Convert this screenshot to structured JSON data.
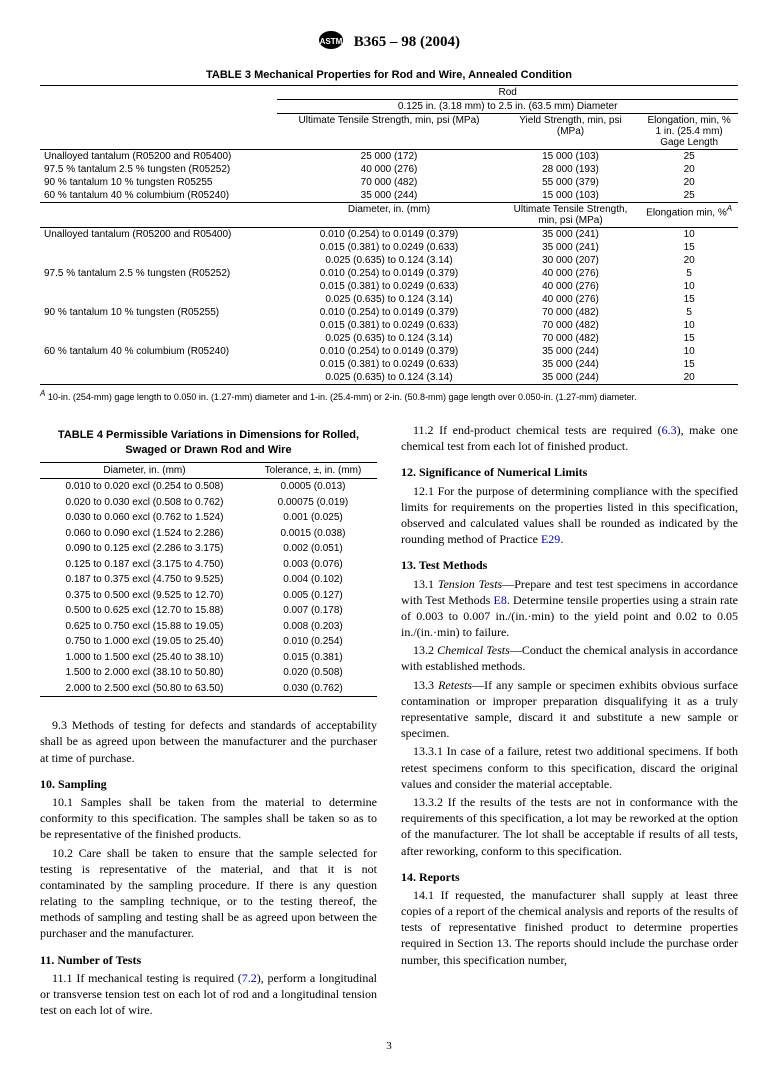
{
  "header": {
    "standard": "B365 – 98 (2004)"
  },
  "table3": {
    "title": "TABLE 3 Mechanical Properties for Rod and Wire, Annealed Condition",
    "top_header": "Rod",
    "sub_header": "0.125 in. (3.18 mm) to 2.5 in. (63.5 mm) Diameter",
    "col1": "Ultimate Tensile Strength, min, psi (MPa)",
    "col2": "Yield Strength, min, psi (MPa)",
    "col3": "Elongation, min, % 1 in. (25.4 mm) Gage Length",
    "rodRows": [
      {
        "mat": "Unalloyed tantalum (R05200 and R05400)",
        "uts": "25 000 (172)",
        "ys": "15 000 (103)",
        "el": "25"
      },
      {
        "mat": "97.5 % tantalum 2.5 % tungsten (R05252)",
        "uts": "40 000 (276)",
        "ys": "28 000 (193)",
        "el": "20"
      },
      {
        "mat": "90 % tantalum 10 % tungsten R05255",
        "uts": "70 000 (482)",
        "ys": "55 000 (379)",
        "el": "20"
      },
      {
        "mat": "60 % tantalum 40 % columbium (R05240)",
        "uts": "35 000 (244)",
        "ys": "15 000 (103)",
        "el": "25"
      }
    ],
    "mid_col1": "Diameter, in. (mm)",
    "mid_col2": "Ultimate Tensile Strength, min, psi (MPa)",
    "mid_col3": "Elongation min, %",
    "mid_col3_sup": "A",
    "wireGroups": [
      {
        "mat": "Unalloyed tantalum (R05200 and R05400)",
        "rows": [
          {
            "d": "0.010 (0.254) to 0.0149 (0.379)",
            "uts": "35 000 (241)",
            "el": "10"
          },
          {
            "d": "0.015 (0.381) to 0.0249 (0.633)",
            "uts": "35 000 (241)",
            "el": "15"
          },
          {
            "d": "0.025 (0.635) to 0.124 (3.14)",
            "uts": "30 000 (207)",
            "el": "20"
          }
        ]
      },
      {
        "mat": "97.5 % tantalum 2.5 % tungsten (R05252)",
        "rows": [
          {
            "d": "0.010 (0.254) to 0.0149 (0.379)",
            "uts": "40 000 (276)",
            "el": "5"
          },
          {
            "d": "0.015 (0.381) to 0.0249 (0.633)",
            "uts": "40 000 (276)",
            "el": "10"
          },
          {
            "d": "0.025 (0.635) to 0.124 (3.14)",
            "uts": "40 000 (276)",
            "el": "15"
          }
        ]
      },
      {
        "mat": "90 % tantalum 10 % tungsten (R05255)",
        "rows": [
          {
            "d": "0.010 (0.254) to 0.0149 (0.379)",
            "uts": "70 000 (482)",
            "el": "5"
          },
          {
            "d": "0.015 (0.381) to 0.0249 (0.633)",
            "uts": "70 000 (482)",
            "el": "10"
          },
          {
            "d": "0.025 (0.635) to 0.124 (3.14)",
            "uts": "70 000 (482)",
            "el": "15"
          }
        ]
      },
      {
        "mat": "60 % tantalum 40 % columbium (R05240)",
        "rows": [
          {
            "d": "0.010 (0.254) to 0.0149 (0.379)",
            "uts": "35 000 (244)",
            "el": "10"
          },
          {
            "d": "0.015 (0.381) to 0.0249 (0.633)",
            "uts": "35 000 (244)",
            "el": "15"
          },
          {
            "d": "0.025 (0.635) to 0.124 (3.14)",
            "uts": "35 000 (244)",
            "el": "20"
          }
        ]
      }
    ],
    "footnote_sup": "A",
    "footnote": " 10-in. (254-mm) gage length to 0.050 in. (1.27-mm) diameter and 1-in. (25.4-mm) or 2-in. (50.8-mm) gage length over 0.050-in. (1.27-mm) diameter."
  },
  "table4": {
    "title": "TABLE 4 Permissible Variations in Dimensions for Rolled, Swaged or Drawn Rod and Wire",
    "col1": "Diameter, in. (mm)",
    "col2": "Tolerance, ±, in. (mm)",
    "rows": [
      {
        "d": "0.010 to 0.020 excl (0.254 to 0.508)",
        "t": "0.0005 (0.013)"
      },
      {
        "d": "0.020 to 0.030 excl (0.508 to 0.762)",
        "t": "0.00075 (0.019)"
      },
      {
        "d": "0.030 to 0.060 excl (0.762 to 1.524)",
        "t": "0.001 (0.025)"
      },
      {
        "d": "0.060 to 0.090 excl (1.524 to 2.286)",
        "t": "0.0015 (0.038)"
      },
      {
        "d": "0.090 to 0.125 excl (2.286 to 3.175)",
        "t": "0.002 (0.051)"
      },
      {
        "d": "0.125 to 0.187 excl (3.175 to 4.750)",
        "t": "0.003 (0.076)"
      },
      {
        "d": "0.187 to 0.375 excl (4.750 to 9.525)",
        "t": "0.004 (0.102)"
      },
      {
        "d": "0.375 to 0.500 excl (9.525 to 12.70)",
        "t": "0.005 (0.127)"
      },
      {
        "d": "0.500 to 0.625 excl (12.70 to 15.88)",
        "t": "0.007 (0.178)"
      },
      {
        "d": "0.625 to 0.750 excl (15.88 to 19.05)",
        "t": "0.008 (0.203)"
      },
      {
        "d": "0.750 to 1.000 excl (19.05 to 25.40)",
        "t": "0.010 (0.254)"
      },
      {
        "d": "1.000 to 1.500 excl (25.40 to 38.10)",
        "t": "0.015 (0.381)"
      },
      {
        "d": "1.500 to 2.000 excl (38.10 to 50.80)",
        "t": "0.020 (0.508)"
      },
      {
        "d": "2.000 to 2.500 excl (50.80 to 63.50)",
        "t": "0.030 (0.762)"
      }
    ]
  },
  "body": {
    "p93": "9.3 Methods of testing for defects and standards of acceptability shall be as agreed upon between the manufacturer and the purchaser at time of purchase.",
    "s10": "10. Sampling",
    "p101": "10.1 Samples shall be taken from the material to determine conformity to this specification. The samples shall be taken so as to be representative of the finished products.",
    "p102": "10.2 Care shall be taken to ensure that the sample selected for testing is representative of the material, and that it is not contaminated by the sampling procedure. If there is any question relating to the sampling technique, or to the testing thereof, the methods of sampling and testing shall be as agreed upon between the purchaser and the manufacturer.",
    "s11": "11. Number of Tests",
    "p111a": "11.1 If mechanical testing is required (",
    "p111ref": "7.2",
    "p111b": "), perform a longitudinal or transverse tension test on each lot of rod and a longitudinal tension test on each lot of wire.",
    "p112a": "11.2 If end-product chemical tests are required (",
    "p112ref": "6.3",
    "p112b": "), make one chemical test from each lot of finished product.",
    "s12": "12. Significance of Numerical Limits",
    "p121a": "12.1 For the purpose of determining compliance with the specified limits for requirements on the properties listed in this specification, observed and calculated values shall be rounded as indicated by the rounding method of Practice ",
    "p121ref": "E29",
    "p121b": ".",
    "s13": "13. Test Methods",
    "p131a": "13.1 ",
    "p131i": "Tension Tests",
    "p131b": "—Prepare and test test specimens in accordance with Test Methods ",
    "p131ref": "E8",
    "p131c": ". Determine tensile properties using a strain rate of 0.003 to 0.007 in./(in.·min) to the yield point and 0.02 to 0.05 in./(in.·min) to failure.",
    "p132a": "13.2 ",
    "p132i": "Chemical Tests",
    "p132b": "—Conduct the chemical analysis in accordance with established methods.",
    "p133a": "13.3 ",
    "p133i": "Retests",
    "p133b": "—If any sample or specimen exhibits obvious surface contamination or improper preparation disqualifying it as a truly representative sample, discard it and substitute a new sample or specimen.",
    "p1331": "13.3.1 In case of a failure, retest two additional specimens. If both retest specimens conform to this specification, discard the original values and consider the material acceptable.",
    "p1332": "13.3.2 If the results of the tests are not in conformance with the requirements of this specification, a lot may be reworked at the option of the manufacturer. The lot shall be acceptable if results of all tests, after reworking, conform to this specification.",
    "s14": "14. Reports",
    "p141": "14.1 If requested, the manufacturer shall supply at least three copies of a report of the chemical analysis and reports of the results of tests of representative finished product to determine properties required in Section 13. The reports should include the purchase order number, this specification number,"
  },
  "pageNum": "3"
}
